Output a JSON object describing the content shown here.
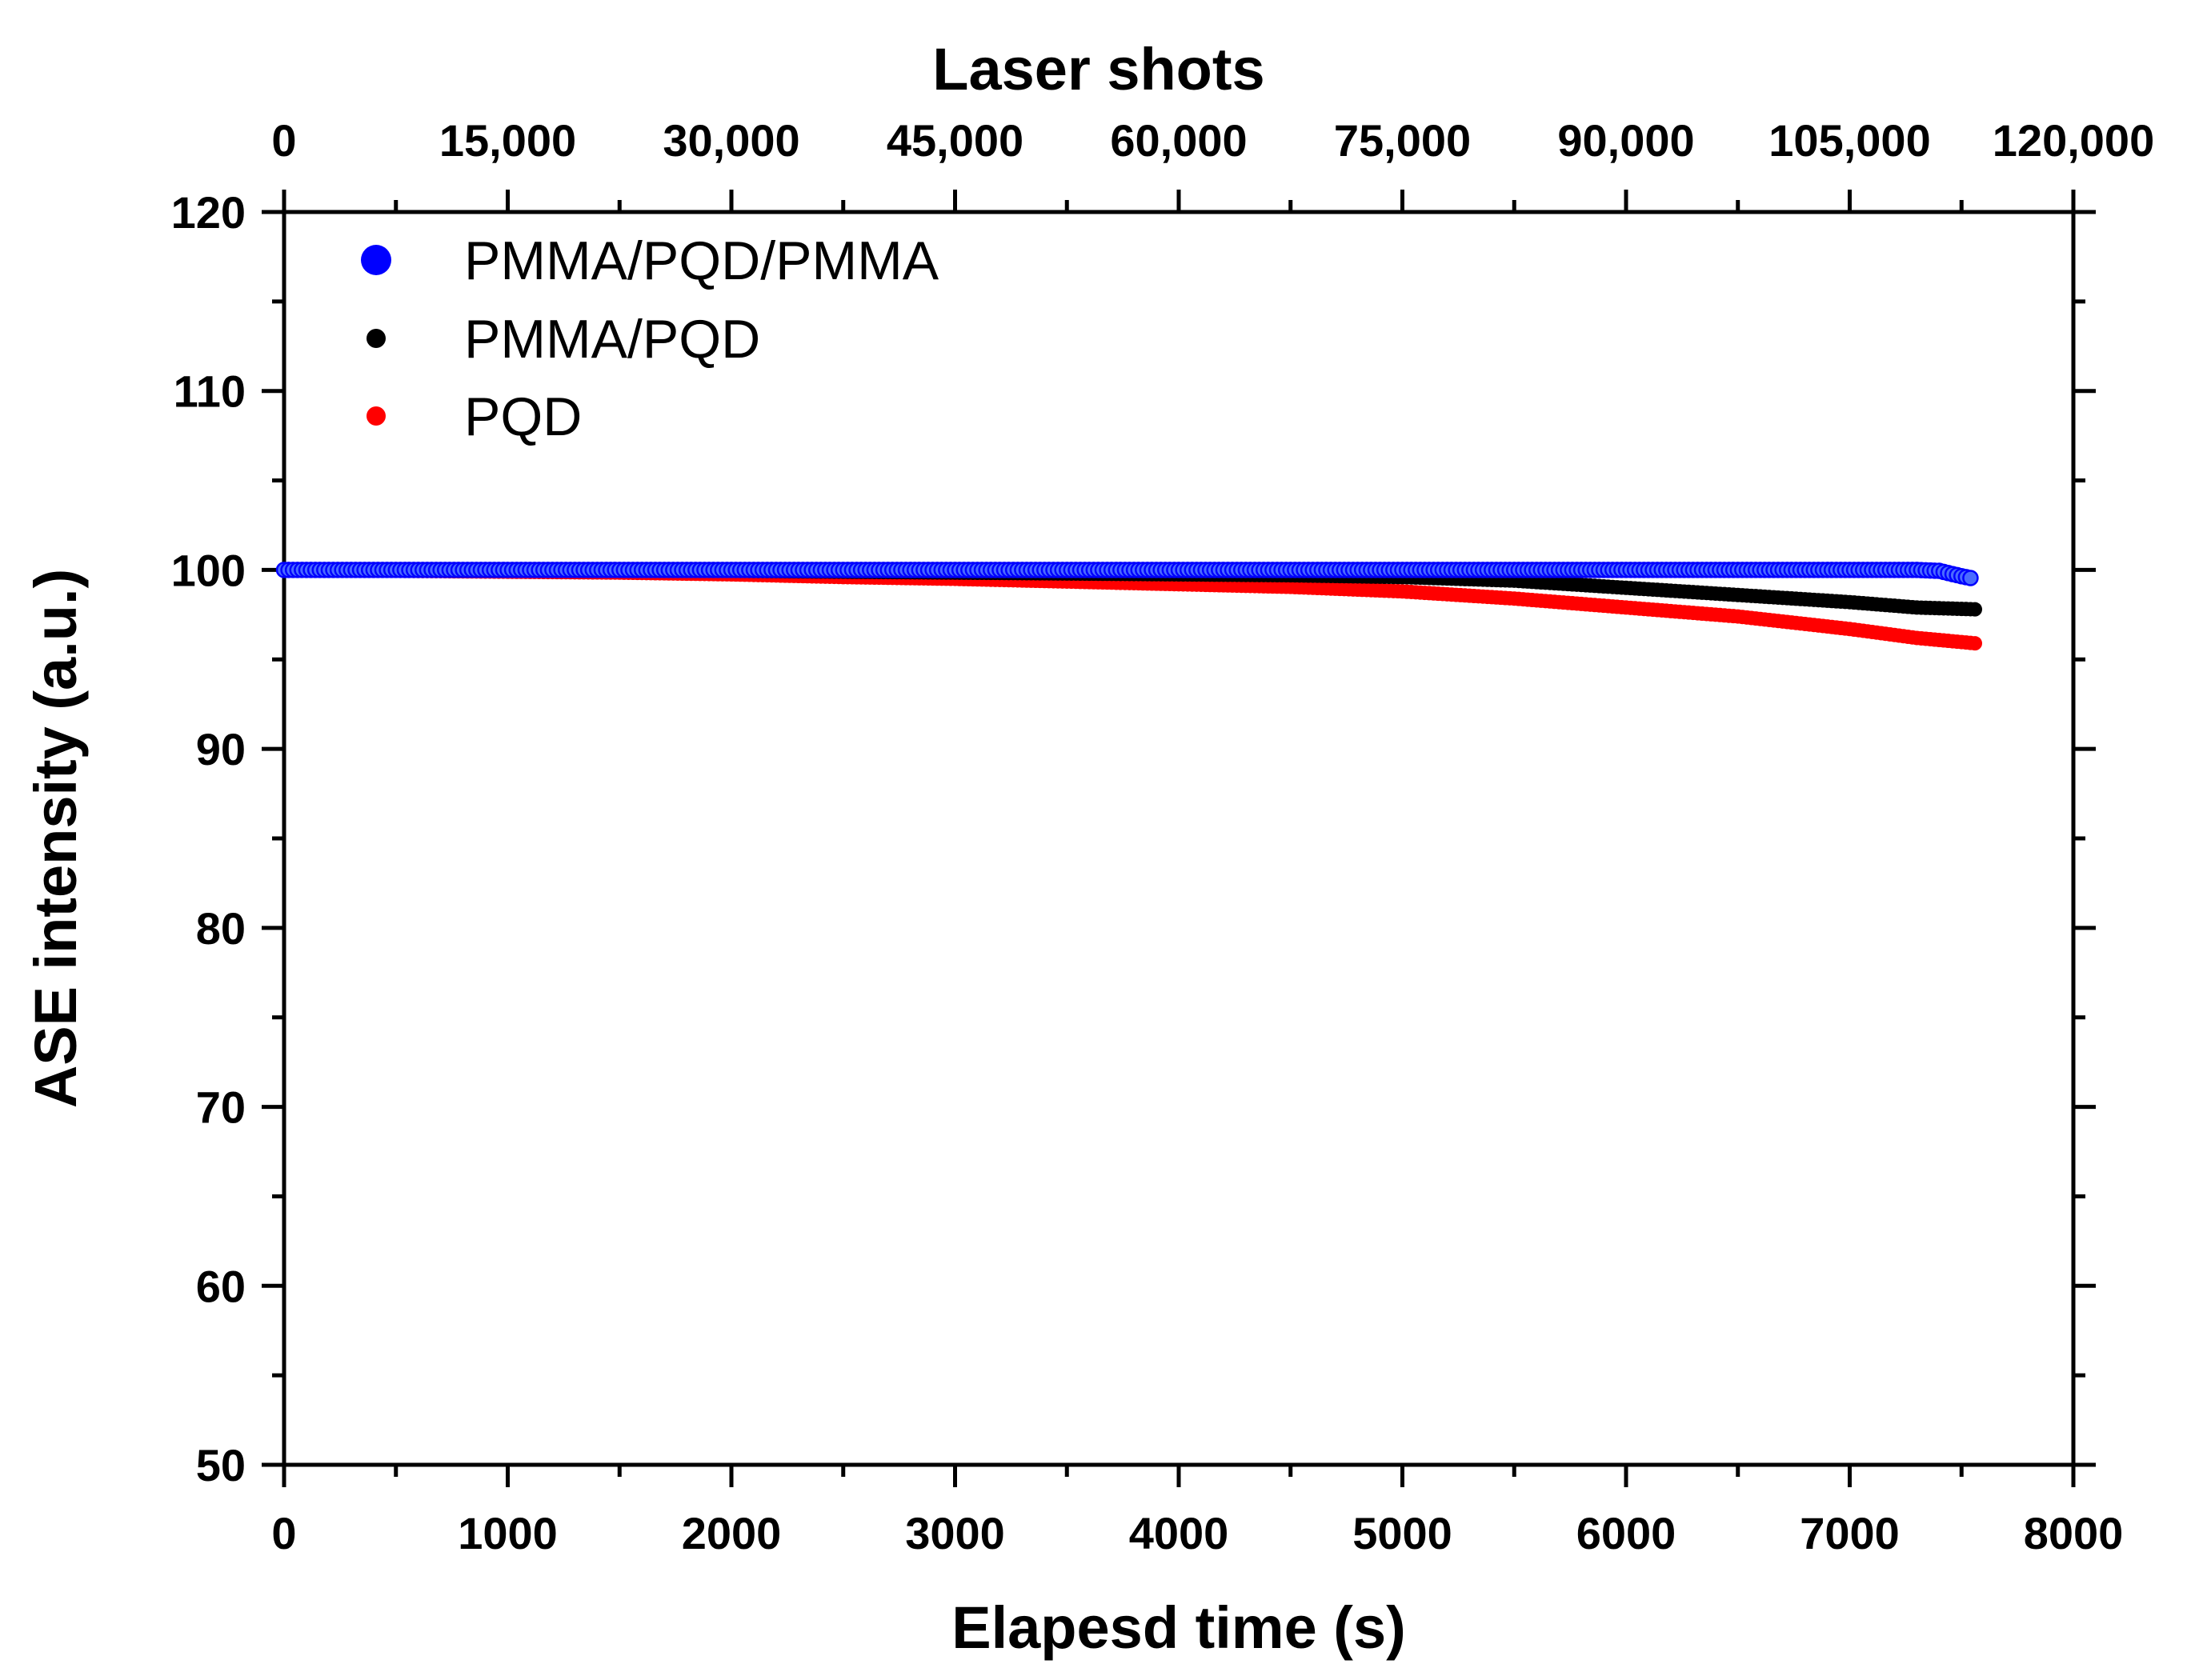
{
  "chart_data": {
    "type": "scatter",
    "xlabel": "Elapesd time (s)",
    "ylabel": "ASE intensity (a.u.)",
    "x2label": "Laser shots",
    "xlim": [
      0,
      8000
    ],
    "ylim": [
      50,
      120
    ],
    "x2lim": [
      0,
      120000
    ],
    "xticks": [
      0,
      1000,
      2000,
      3000,
      4000,
      5000,
      6000,
      7000,
      8000
    ],
    "xtick_labels": [
      "0",
      "1000",
      "2000",
      "3000",
      "4000",
      "5000",
      "6000",
      "7000",
      "8000"
    ],
    "yticks": [
      50,
      60,
      70,
      80,
      90,
      100,
      110,
      120
    ],
    "ytick_labels": [
      "50",
      "60",
      "70",
      "80",
      "90",
      "100",
      "110",
      "120"
    ],
    "x2ticks": [
      0,
      15000,
      30000,
      45000,
      60000,
      75000,
      90000,
      105000,
      120000
    ],
    "x2tick_labels": [
      "0",
      "15,000",
      "30,000",
      "45,000",
      "60,000",
      "75,000",
      "90,000",
      "105,000",
      "120,000"
    ],
    "legend_position": "top-left",
    "grid": false,
    "series": [
      {
        "name": "PQD",
        "color": "#ff0000",
        "marker": "small-dot",
        "x": [
          0,
          500,
          1000,
          1500,
          2000,
          2500,
          3000,
          3500,
          4000,
          4500,
          5000,
          5500,
          6000,
          6500,
          7000,
          7300,
          7560
        ],
        "y": [
          100.0,
          99.95,
          99.9,
          99.85,
          99.75,
          99.6,
          99.5,
          99.35,
          99.2,
          99.05,
          98.8,
          98.4,
          97.9,
          97.4,
          96.7,
          96.2,
          95.9
        ]
      },
      {
        "name": "PMMA/PQD",
        "color": "#000000",
        "marker": "small-dot",
        "x": [
          0,
          500,
          1000,
          1500,
          2000,
          2500,
          3000,
          3500,
          4000,
          4500,
          5000,
          5500,
          6000,
          6500,
          7000,
          7300,
          7560
        ],
        "y": [
          100.0,
          100.0,
          100.0,
          100.0,
          99.95,
          99.9,
          99.85,
          99.8,
          99.75,
          99.7,
          99.6,
          99.4,
          99.0,
          98.6,
          98.2,
          97.9,
          97.8
        ]
      },
      {
        "name": "PMMA/PQD/PMMA",
        "color": "#0000ff",
        "marker": "open-circle",
        "x": [
          0,
          500,
          1000,
          1500,
          2000,
          2500,
          3000,
          3500,
          4000,
          4500,
          5000,
          5500,
          6000,
          6500,
          7000,
          7300,
          7400,
          7450,
          7500,
          7540
        ],
        "y": [
          100.0,
          100.0,
          100.0,
          100.0,
          100.0,
          100.0,
          100.0,
          100.0,
          100.0,
          100.0,
          100.0,
          100.0,
          100.0,
          100.0,
          100.0,
          100.0,
          99.95,
          99.8,
          99.65,
          99.55
        ]
      }
    ],
    "legend": [
      {
        "label": "PMMA/PQD/PMMA",
        "color": "#0000ff",
        "marker": "large-dot"
      },
      {
        "label": "PMMA/PQD",
        "color": "#000000",
        "marker": "small-dot"
      },
      {
        "label": "PQD",
        "color": "#ff0000",
        "marker": "small-dot"
      }
    ]
  }
}
